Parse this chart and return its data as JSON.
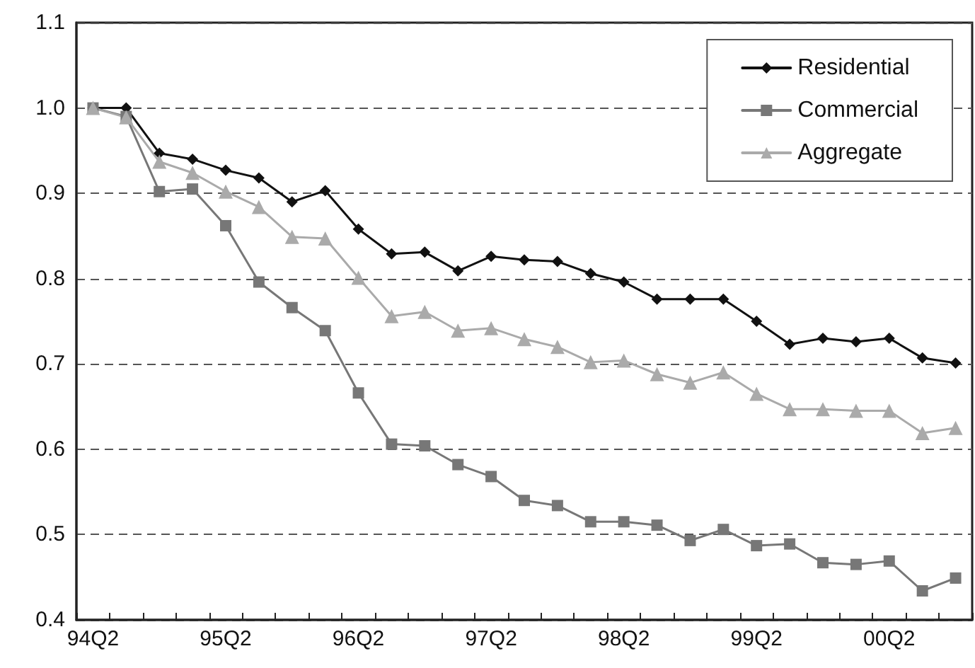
{
  "chart_data": {
    "type": "line",
    "categories": [
      "94Q2",
      null,
      null,
      null,
      "95Q2",
      null,
      null,
      null,
      "96Q2",
      null,
      null,
      null,
      "97Q2",
      null,
      null,
      null,
      "98Q2",
      null,
      null,
      null,
      "99Q2",
      null,
      null,
      null,
      "00Q2",
      null,
      null
    ],
    "series": [
      {
        "name": "Residential",
        "color": "#111111",
        "marker": "diamond",
        "values": [
          1.0,
          1.0,
          0.947,
          0.94,
          0.927,
          0.918,
          0.89,
          0.903,
          0.858,
          0.829,
          0.831,
          0.809,
          0.826,
          0.822,
          0.82,
          0.806,
          0.796,
          0.776,
          0.776,
          0.776,
          0.75,
          0.723,
          0.73,
          0.726,
          0.73,
          0.707,
          0.701
        ]
      },
      {
        "name": "Commercial",
        "color": "#777777",
        "marker": "square",
        "values": [
          1.0,
          0.99,
          0.902,
          0.905,
          0.862,
          0.796,
          0.766,
          0.739,
          0.666,
          0.606,
          0.604,
          0.582,
          0.568,
          0.54,
          0.534,
          0.515,
          0.515,
          0.511,
          0.493,
          0.506,
          0.487,
          0.489,
          0.467,
          0.465,
          0.469,
          0.434,
          0.449
        ]
      },
      {
        "name": "Aggregate",
        "color": "#aaaaaa",
        "marker": "triangle",
        "values": [
          1.0,
          0.989,
          0.937,
          0.924,
          0.902,
          0.884,
          0.849,
          0.847,
          0.801,
          0.756,
          0.761,
          0.739,
          0.742,
          0.729,
          0.72,
          0.702,
          0.704,
          0.688,
          0.678,
          0.69,
          0.665,
          0.647,
          0.647,
          0.645,
          0.645,
          0.619,
          0.625
        ]
      }
    ],
    "ylim": [
      0.4,
      1.1
    ],
    "yticks": [
      {
        "value": 0.4,
        "label": "0.4"
      },
      {
        "value": 0.5,
        "label": "0.5"
      },
      {
        "value": 0.6,
        "label": "0.6"
      },
      {
        "value": 0.7,
        "label": "0.7"
      },
      {
        "value": 0.8,
        "label": "0.8"
      },
      {
        "value": 0.9,
        "label": "0.9"
      },
      {
        "value": 1.0,
        "label": "1.0"
      },
      {
        "value": 1.1,
        "label": "1.1"
      }
    ],
    "grid": "y",
    "legend": "top right",
    "line_style": "solid"
  }
}
